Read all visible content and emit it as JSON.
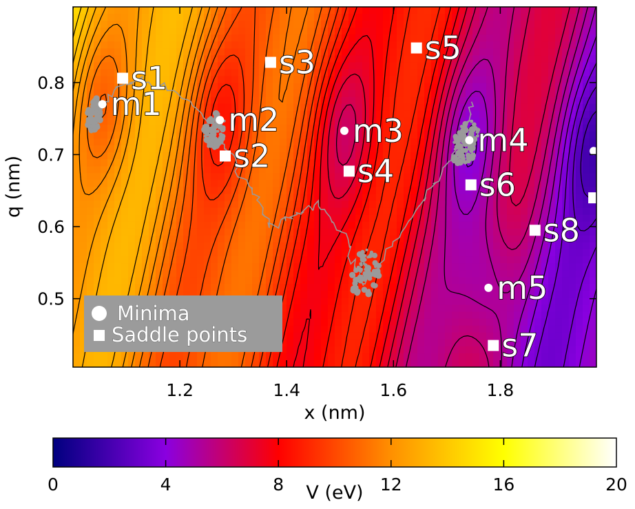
{
  "chart_data": {
    "type": "heatmap",
    "title": "",
    "xlabel": "x (nm)",
    "ylabel": "q (nm)",
    "xlim": [
      1.0,
      1.98
    ],
    "ylim": [
      0.405,
      0.905
    ],
    "xticks": [
      "1.2",
      "1.4",
      "1.6",
      "1.8"
    ],
    "xtick_values": [
      1.2,
      1.4,
      1.6,
      1.8
    ],
    "yticks": [
      "0.5",
      "0.6",
      "0.7",
      "0.8"
    ],
    "ytick_values": [
      0.5,
      0.6,
      0.7,
      0.8
    ],
    "colorbar": {
      "label": "V (eV)",
      "range": [
        0,
        20
      ],
      "ticks": [
        "0",
        "4",
        "8",
        "12",
        "16",
        "20"
      ],
      "tick_values": [
        0,
        4,
        8,
        12,
        16,
        20
      ],
      "colormap": [
        "#00007f",
        "#8a00e0",
        "#ff0000",
        "#ffe000",
        "#ffffff"
      ]
    },
    "contours": "on",
    "legend": {
      "placement": "bottom-left",
      "entries": [
        {
          "label": "Minima",
          "marker": "circle"
        },
        {
          "label": "Saddle points",
          "marker": "square"
        }
      ]
    },
    "minima": [
      {
        "label": "m1",
        "x": 1.055,
        "y": 0.77
      },
      {
        "label": "m2",
        "x": 1.275,
        "y": 0.748
      },
      {
        "label": "m3",
        "x": 1.508,
        "y": 0.733
      },
      {
        "label": "m4",
        "x": 1.742,
        "y": 0.72
      },
      {
        "label": "m5",
        "x": 1.778,
        "y": 0.515
      },
      {
        "label": "",
        "x": 1.975,
        "y": 0.705
      }
    ],
    "saddle_points": [
      {
        "label": "s1",
        "x": 1.093,
        "y": 0.806
      },
      {
        "label": "s2",
        "x": 1.285,
        "y": 0.698
      },
      {
        "label": "s3",
        "x": 1.37,
        "y": 0.828
      },
      {
        "label": "s4",
        "x": 1.517,
        "y": 0.677
      },
      {
        "label": "s5",
        "x": 1.643,
        "y": 0.848
      },
      {
        "label": "s6",
        "x": 1.745,
        "y": 0.658
      },
      {
        "label": "s7",
        "x": 1.787,
        "y": 0.435
      },
      {
        "label": "s8",
        "x": 1.865,
        "y": 0.595
      },
      {
        "label": "",
        "x": 1.975,
        "y": 0.64
      }
    ],
    "trajectory_color": "#9a9a9a"
  }
}
